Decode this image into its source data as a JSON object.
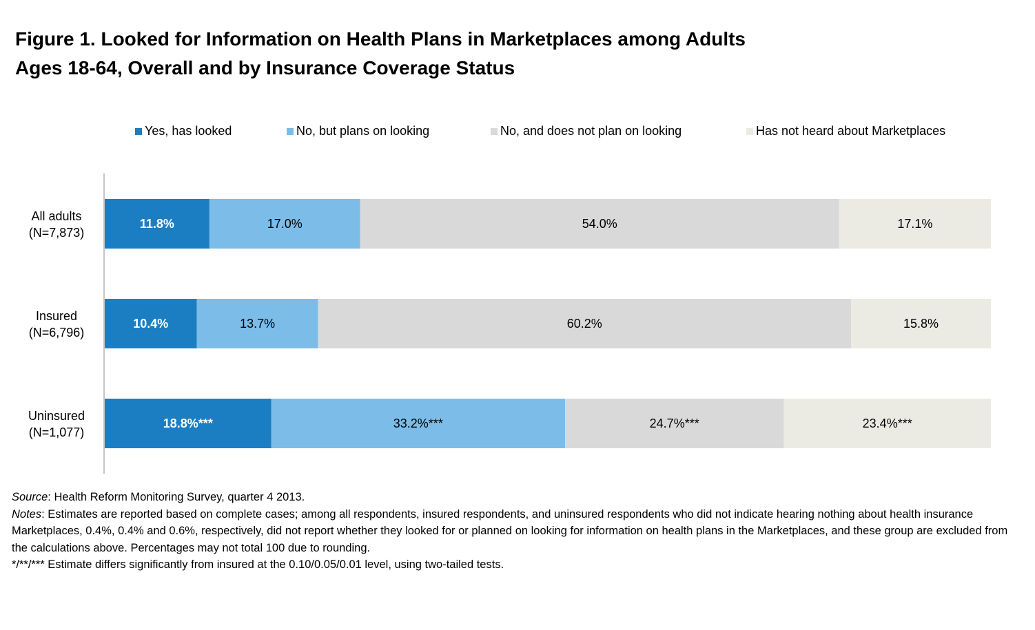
{
  "title": {
    "line1": "Figure 1.  Looked for Information on Health Plans in Marketplaces among Adults",
    "line2": "Ages 18-64, Overall and by Insurance Coverage Status"
  },
  "colors": {
    "yes_looked": "#1b7ec2",
    "plans_looking": "#7bbde8",
    "not_plan": "#d9d9d9",
    "not_heard": "#ecebe3",
    "axis": "#888888"
  },
  "legend": [
    {
      "label": "Yes, has looked",
      "color_key": "yes_looked"
    },
    {
      "label": "No, but plans on looking",
      "color_key": "plans_looking"
    },
    {
      "label": "No, and does not plan on looking",
      "color_key": "not_plan"
    },
    {
      "label": "Has not heard about Marketplaces",
      "color_key": "not_heard"
    }
  ],
  "chart_data": {
    "type": "bar",
    "orientation": "horizontal",
    "stacked": true,
    "xlim": [
      0,
      100
    ],
    "categories": [
      {
        "line1": "All adults",
        "line2": "(N=7,873)"
      },
      {
        "line1": "Insured",
        "line2": "(N=6,796)"
      },
      {
        "line1": "Uninsured",
        "line2": "(N=1,077)"
      }
    ],
    "series": [
      {
        "name": "Yes, has looked",
        "color_key": "yes_looked",
        "values": [
          11.8,
          10.4,
          18.8
        ],
        "labels": [
          "11.8%",
          "10.4%",
          "18.8%***"
        ],
        "label_color": "#ffffff",
        "label_bold": true
      },
      {
        "name": "No, but plans on looking",
        "color_key": "plans_looking",
        "values": [
          17.0,
          13.7,
          33.2
        ],
        "labels": [
          "17.0%",
          "13.7%",
          "33.2%***"
        ],
        "label_color": "#000000",
        "label_bold": false
      },
      {
        "name": "No, and does not plan on looking",
        "color_key": "not_plan",
        "values": [
          54.0,
          60.2,
          24.7
        ],
        "labels": [
          "54.0%",
          "60.2%",
          "24.7%***"
        ],
        "label_color": "#000000",
        "label_bold": false
      },
      {
        "name": "Has not heard about Marketplaces",
        "color_key": "not_heard",
        "values": [
          17.1,
          15.8,
          23.4
        ],
        "labels": [
          "17.1%",
          "15.8%",
          "23.4%***"
        ],
        "label_color": "#000000",
        "label_bold": false
      }
    ]
  },
  "footnotes": {
    "source_label": "Source",
    "source_text": ": Health Reform Monitoring Survey, quarter 4 2013.",
    "notes_label": "Notes",
    "notes_text": ": Estimates are reported based on complete cases; among all respondents, insured respondents, and uninsured respondents who did not indicate hearing nothing about health insurance Marketplaces, 0.4%, 0.4% and 0.6%, respectively, did not report whether they looked for or planned on looking for information on health plans in the Marketplaces, and these group are excluded from the calculations above. Percentages may not total 100 due to rounding.",
    "significance": "*/**/*** Estimate differs significantly from insured at the 0.10/0.05/0.01 level, using two-tailed tests."
  }
}
